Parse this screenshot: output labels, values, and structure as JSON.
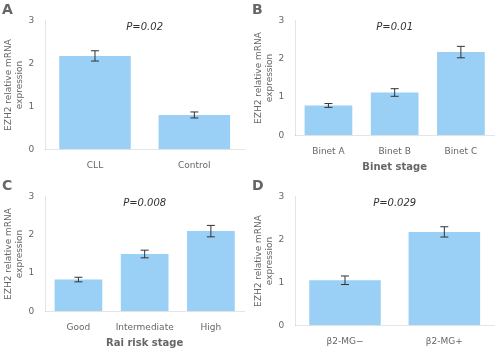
{
  "chart_data": [
    {
      "type": "bar",
      "title": "A",
      "categories": [
        "CLL",
        "Control"
      ],
      "values": [
        2.18,
        0.8
      ],
      "errors": [
        0.12,
        0.07
      ],
      "ylabel": "EZH2 relative mRNA\nexpression",
      "annotations": [
        "P=0.02"
      ],
      "ylim": [
        0,
        3
      ],
      "yticks": [
        0,
        1,
        2,
        3
      ],
      "grid": false
    },
    {
      "type": "bar",
      "title": "B",
      "categories": [
        "Binet A",
        "Binet B",
        "Binet C"
      ],
      "values": [
        0.78,
        1.12,
        2.18
      ],
      "errors": [
        0.05,
        0.1,
        0.15
      ],
      "xlabel": "Binet stage",
      "ylabel": "EZH2 relative mRNA\nexpression",
      "annotations": [
        "P=0.01"
      ],
      "ylim": [
        0,
        3
      ],
      "yticks": [
        0,
        1,
        2,
        3
      ],
      "grid": false
    },
    {
      "type": "bar",
      "title": "C",
      "categories": [
        "Good",
        "Intermediate",
        "High"
      ],
      "values": [
        0.83,
        1.5,
        2.1
      ],
      "errors": [
        0.06,
        0.1,
        0.15
      ],
      "xlabel": "Rai risk stage",
      "ylabel": "EZH2 relative mRNA\nexpression",
      "annotations": [
        "P=0.008"
      ],
      "ylim": [
        0,
        3
      ],
      "yticks": [
        0,
        1,
        2,
        3
      ],
      "grid": false
    },
    {
      "type": "bar",
      "title": "D",
      "categories": [
        "β2-MG−",
        "β2-MG+"
      ],
      "values": [
        1.05,
        2.18
      ],
      "errors": [
        0.1,
        0.12
      ],
      "ylabel": "EZH2 relative mRNA\nexpression",
      "annotations": [
        "P=0.029"
      ],
      "ylim": [
        0,
        3
      ],
      "yticks": [
        0,
        1,
        2,
        3
      ],
      "grid": false
    }
  ]
}
